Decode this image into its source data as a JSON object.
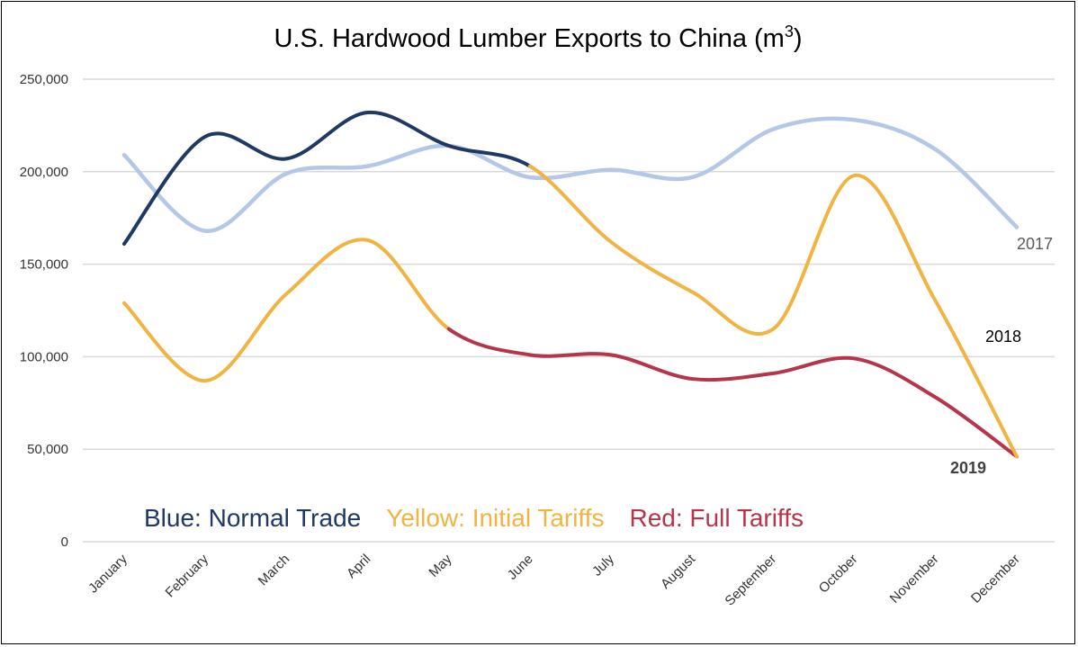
{
  "chart_data": {
    "type": "line",
    "title": "U.S. Hardwood Lumber Exports to China (m",
    "title_superscript": "3",
    "title_suffix": ")",
    "xlabel": "",
    "ylabel": "",
    "ylim": [
      0,
      250000
    ],
    "yticks": [
      0,
      50000,
      100000,
      150000,
      200000,
      250000
    ],
    "ytick_labels": [
      "0",
      "50,000",
      "100,000",
      "150,000",
      "200,000",
      "250,000"
    ],
    "grid": true,
    "categories": [
      "January",
      "February",
      "March",
      "April",
      "May",
      "June",
      "July",
      "August",
      "September",
      "October",
      "November",
      "December"
    ],
    "series": [
      {
        "name": "2017",
        "values": [
          209000,
          168000,
          199000,
          203000,
          214000,
          197000,
          201000,
          197000,
          223000,
          228000,
          212000,
          170000
        ],
        "segments": [
          {
            "from": 0,
            "to": 11,
            "phase": "history"
          }
        ]
      },
      {
        "name": "2018",
        "values": [
          161000,
          219000,
          207000,
          232000,
          214000,
          203000,
          162000,
          135000,
          115000,
          198000,
          130000,
          46000
        ],
        "segments": [
          {
            "from": 0,
            "to": 5,
            "phase": "normal"
          },
          {
            "from": 5,
            "to": 11,
            "phase": "initial"
          }
        ]
      },
      {
        "name": "2019",
        "values": [
          129000,
          87000,
          134000,
          163000,
          115000,
          101000,
          101000,
          88000,
          91000,
          99000,
          78000,
          46000
        ],
        "segments": [
          {
            "from": 0,
            "to": 4,
            "phase": "initial"
          },
          {
            "from": 4,
            "to": 11,
            "phase": "full"
          }
        ]
      }
    ],
    "colors": {
      "history": "#b4c7e7",
      "normal": "#1f3864",
      "initial": "#f0b442",
      "full": "#b5364b",
      "grid": "#d9d9d9"
    },
    "series_label_colors": {
      "2017": "#595959",
      "2018": "#000000",
      "2019": "#404040"
    },
    "legend": {
      "placement": "bottom-inside",
      "items": [
        {
          "text": "Blue: Normal Trade",
          "color": "#1f3864"
        },
        {
          "text": "Yellow: Initial Tariffs",
          "color": "#f0b442"
        },
        {
          "text": "Red: Full Tariffs",
          "color": "#b5364b"
        }
      ]
    }
  }
}
